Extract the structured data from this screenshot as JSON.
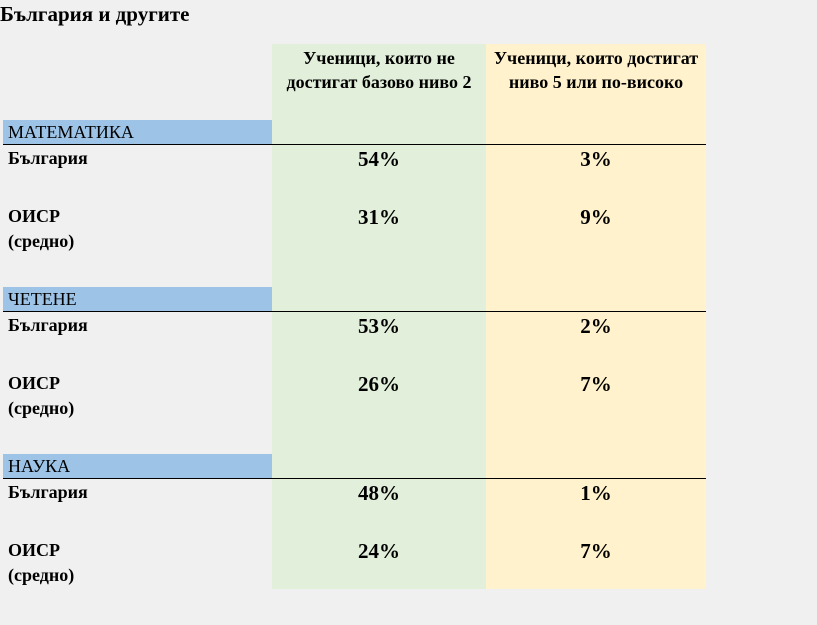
{
  "title": "България и другите",
  "columns": [
    "Ученици, които не достигат базово ниво 2",
    "Ученици, които достигат ниво 5 или по-високо"
  ],
  "sections": [
    {
      "name": "МАТЕМАТИКА",
      "rows": [
        {
          "label": "България",
          "values": [
            "54%",
            "3%"
          ]
        },
        {
          "label": "ОИСР\n(средно)",
          "values": [
            "31%",
            "9%"
          ]
        }
      ]
    },
    {
      "name": "ЧЕТЕНЕ",
      "rows": [
        {
          "label": "България",
          "values": [
            "53%",
            "2%"
          ]
        },
        {
          "label": "ОИСР\n(средно)",
          "values": [
            "26%",
            "7%"
          ]
        }
      ]
    },
    {
      "name": "НАУКА",
      "rows": [
        {
          "label": "България",
          "values": [
            "48%",
            "1%"
          ]
        },
        {
          "label": "ОИСР\n(средно)",
          "values": [
            "24%",
            "7%"
          ]
        }
      ]
    }
  ]
}
